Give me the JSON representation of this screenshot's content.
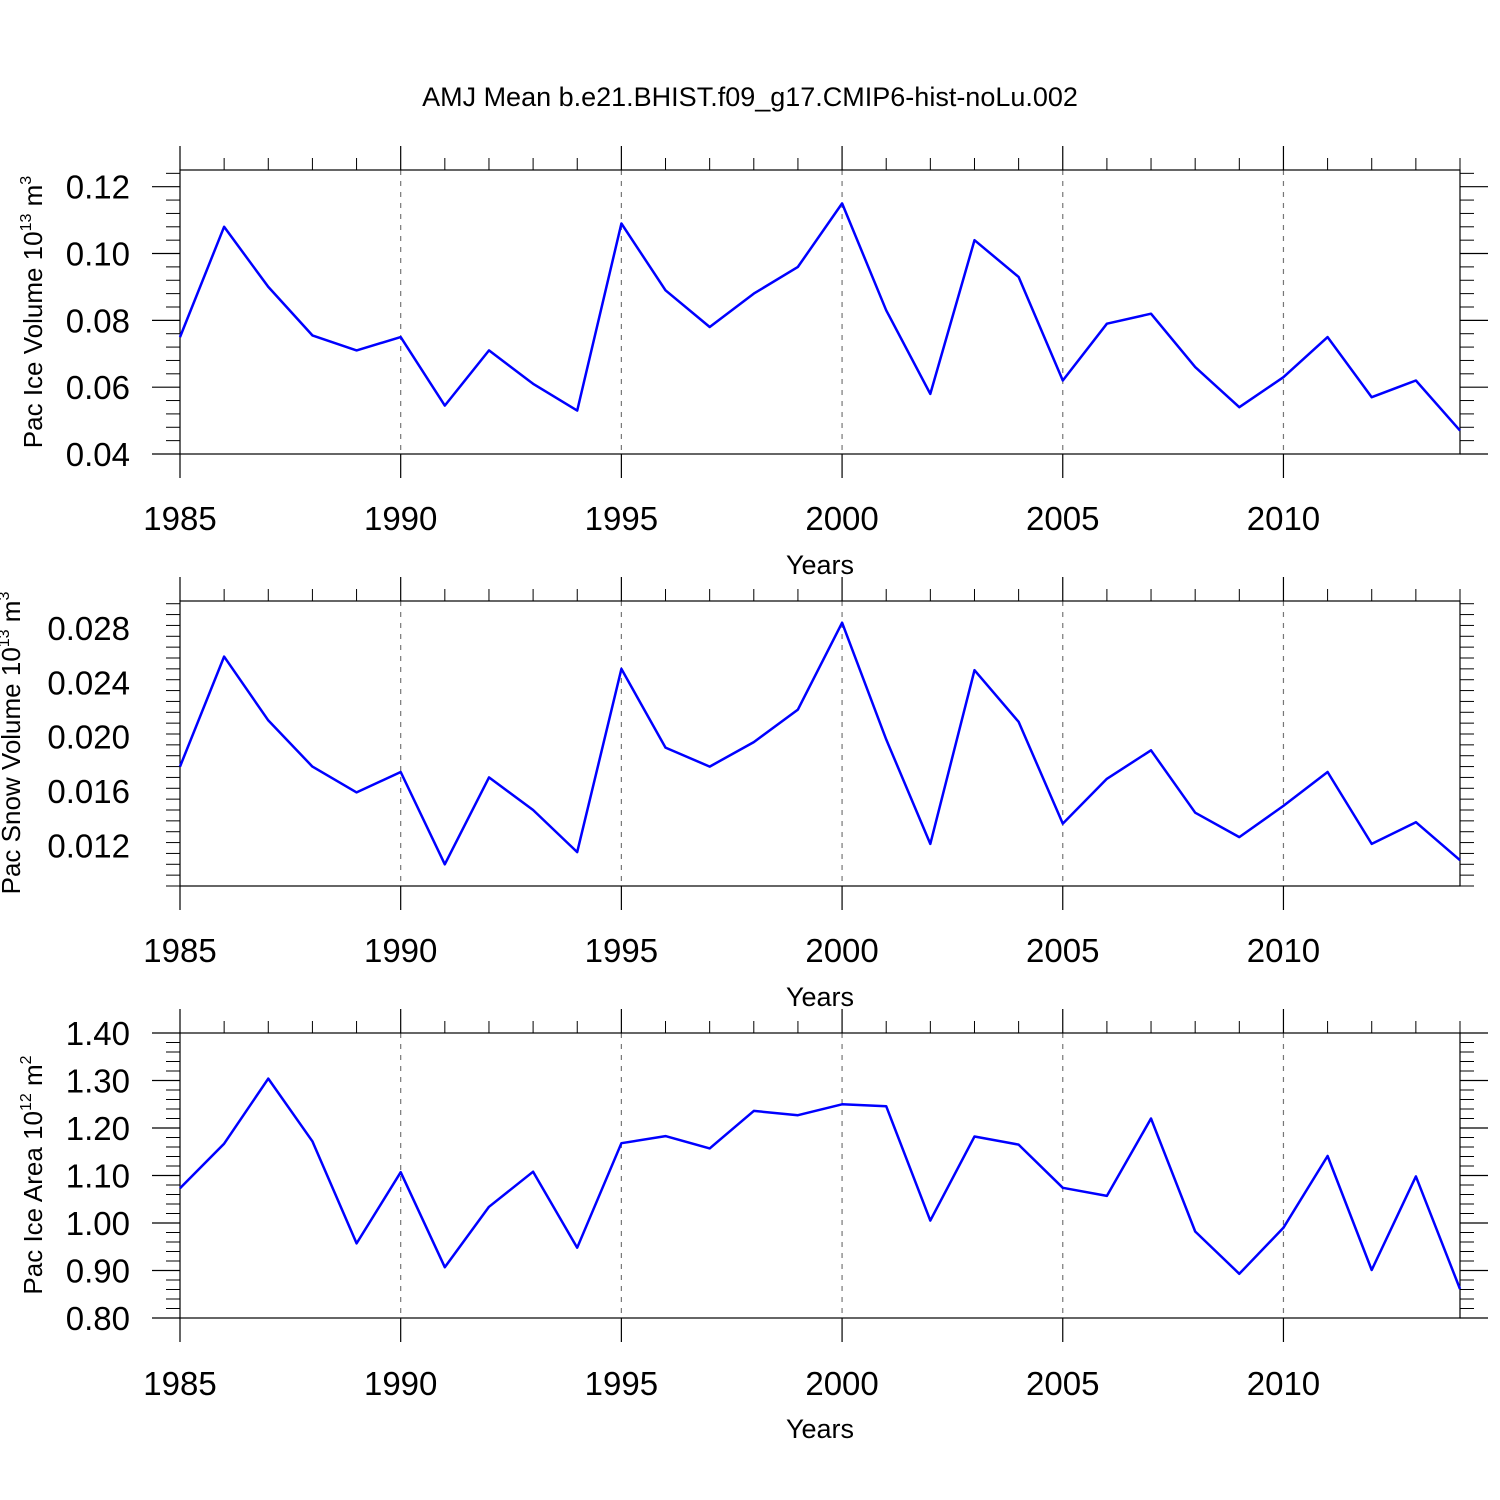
{
  "title": "AMJ Mean b.e21.BHIST.f09_g17.CMIP6-hist-noLu.002",
  "series_color": "#0000ff",
  "chart_data": [
    {
      "type": "line",
      "ylabel": "Pac Ice Volume 10",
      "ylabel_exp": "13",
      "ylabel_unit": "m",
      "ylabel_unit_exp": "3",
      "xlabel": "Years",
      "xlim": [
        1985,
        2014
      ],
      "ylim": [
        0.04,
        0.125
      ],
      "yticks": [
        0.04,
        0.06,
        0.08,
        0.1,
        0.12
      ],
      "ytick_labels": [
        "0.04",
        "0.06",
        "0.08",
        "0.10",
        "0.12"
      ],
      "xticks": [
        1985,
        1990,
        1995,
        2000,
        2005,
        2010
      ],
      "xtick_labels": [
        "1985",
        "1990",
        "1995",
        "2000",
        "2005",
        "2010"
      ],
      "grid": "vertical dashed at major x ticks",
      "x": [
        1985,
        1986,
        1987,
        1988,
        1989,
        1990,
        1991,
        1992,
        1993,
        1994,
        1995,
        1996,
        1997,
        1998,
        1999,
        2000,
        2001,
        2002,
        2003,
        2004,
        2005,
        2006,
        2007,
        2008,
        2009,
        2010,
        2011,
        2012,
        2013,
        2014
      ],
      "y": [
        0.075,
        0.108,
        0.09,
        0.0755,
        0.071,
        0.075,
        0.0545,
        0.071,
        0.061,
        0.053,
        0.109,
        0.089,
        0.078,
        0.088,
        0.096,
        0.115,
        0.083,
        0.058,
        0.104,
        0.093,
        0.062,
        0.079,
        0.082,
        0.066,
        0.054,
        0.063,
        0.075,
        0.057,
        0.062,
        0.047
      ]
    },
    {
      "type": "line",
      "ylabel": "Pac Snow Volume 10",
      "ylabel_exp": "13",
      "ylabel_unit": "m",
      "ylabel_unit_exp": "3",
      "xlabel": "Years",
      "xlim": [
        1985,
        2014
      ],
      "ylim": [
        0.009,
        0.03
      ],
      "yticks": [
        0.012,
        0.016,
        0.02,
        0.024,
        0.028
      ],
      "ytick_labels": [
        "0.012",
        "0.016",
        "0.020",
        "0.024",
        "0.028"
      ],
      "xticks": [
        1985,
        1990,
        1995,
        2000,
        2005,
        2010
      ],
      "xtick_labels": [
        "1985",
        "1990",
        "1995",
        "2000",
        "2005",
        "2010"
      ],
      "grid": "vertical dashed at major x ticks",
      "x": [
        1985,
        1986,
        1987,
        1988,
        1989,
        1990,
        1991,
        1992,
        1993,
        1994,
        1995,
        1996,
        1997,
        1998,
        1999,
        2000,
        2001,
        2002,
        2003,
        2004,
        2005,
        2006,
        2007,
        2008,
        2009,
        2010,
        2011,
        2012,
        2013,
        2014
      ],
      "y": [
        0.0178,
        0.0259,
        0.0212,
        0.0178,
        0.0159,
        0.0174,
        0.0106,
        0.017,
        0.0146,
        0.0115,
        0.025,
        0.0192,
        0.0178,
        0.0196,
        0.022,
        0.0284,
        0.0198,
        0.0121,
        0.0249,
        0.0211,
        0.0136,
        0.0169,
        0.019,
        0.0144,
        0.0126,
        0.0149,
        0.0174,
        0.0121,
        0.0137,
        0.0109
      ]
    },
    {
      "type": "line",
      "ylabel": "Pac Ice Area 10",
      "ylabel_exp": "12",
      "ylabel_unit": "m",
      "ylabel_unit_exp": "2",
      "xlabel": "Years",
      "xlim": [
        1985,
        2014
      ],
      "ylim": [
        0.8,
        1.4
      ],
      "yticks": [
        0.8,
        0.9,
        1.0,
        1.1,
        1.2,
        1.3,
        1.4
      ],
      "ytick_labels": [
        "0.80",
        "0.90",
        "1.00",
        "1.10",
        "1.20",
        "1.30",
        "1.40"
      ],
      "xticks": [
        1985,
        1990,
        1995,
        2000,
        2005,
        2010
      ],
      "xtick_labels": [
        "1985",
        "1990",
        "1995",
        "2000",
        "2005",
        "2010"
      ],
      "grid": "vertical dashed at major x ticks",
      "x": [
        1985,
        1986,
        1987,
        1988,
        1989,
        1990,
        1991,
        1992,
        1993,
        1994,
        1995,
        1996,
        1997,
        1998,
        1999,
        2000,
        2001,
        2002,
        2003,
        2004,
        2005,
        2006,
        2007,
        2008,
        2009,
        2010,
        2011,
        2012,
        2013,
        2014
      ],
      "y": [
        1.073,
        1.167,
        1.304,
        1.172,
        0.957,
        1.107,
        0.907,
        1.034,
        1.108,
        0.948,
        1.168,
        1.183,
        1.157,
        1.236,
        1.227,
        1.25,
        1.246,
        1.005,
        1.182,
        1.165,
        1.074,
        1.057,
        1.22,
        0.982,
        0.893,
        0.99,
        1.141,
        0.901,
        1.098,
        0.861
      ]
    }
  ]
}
